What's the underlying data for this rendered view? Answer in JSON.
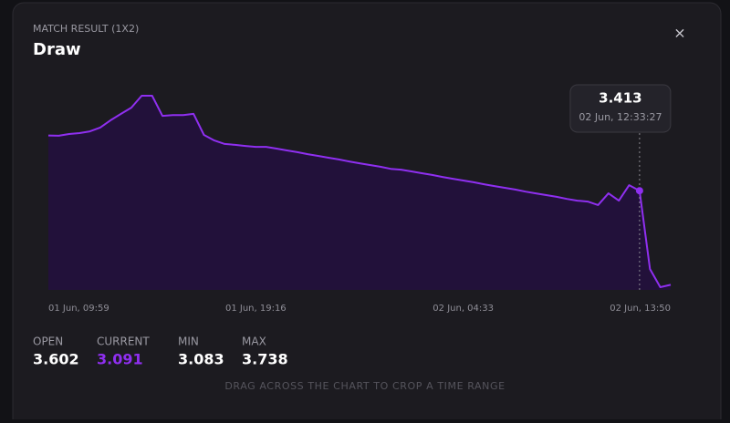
{
  "header": {
    "subtitle": "MATCH RESULT (1X2)",
    "title": "Draw",
    "close": "×"
  },
  "chart_data": {
    "type": "line",
    "color": "#8f2ff0",
    "fill": "#22113a",
    "categories": [
      "01 Jun, 09:59",
      null,
      null,
      null,
      null,
      null,
      null,
      null,
      null,
      null,
      null,
      null,
      null,
      null,
      null,
      null,
      null,
      null,
      null,
      null,
      "01 Jun, 19:16",
      null,
      null,
      null,
      null,
      null,
      null,
      null,
      null,
      null,
      null,
      null,
      null,
      null,
      null,
      null,
      null,
      null,
      null,
      null,
      "02 Jun, 04:33",
      null,
      null,
      null,
      null,
      null,
      null,
      null,
      null,
      null,
      null,
      null,
      null,
      null,
      null,
      null,
      null,
      null,
      null,
      null,
      "02 Jun, 13:50"
    ],
    "values": [
      3.602,
      3.601,
      3.607,
      3.61,
      3.616,
      3.629,
      3.654,
      3.676,
      3.697,
      3.738,
      3.738,
      3.669,
      3.672,
      3.672,
      3.676,
      3.604,
      3.585,
      3.573,
      3.57,
      3.566,
      3.563,
      3.563,
      3.557,
      3.551,
      3.545,
      3.538,
      3.532,
      3.526,
      3.52,
      3.513,
      3.507,
      3.501,
      3.495,
      3.488,
      3.485,
      3.479,
      3.473,
      3.467,
      3.46,
      3.454,
      3.448,
      3.442,
      3.435,
      3.429,
      3.423,
      3.417,
      3.41,
      3.404,
      3.398,
      3.392,
      3.385,
      3.379,
      3.376,
      3.364,
      3.404,
      3.379,
      3.432,
      3.413,
      3.145,
      3.083,
      3.091
    ],
    "tooltip": {
      "value": 3.413,
      "time": "02 Jun, 12:33:27"
    }
  },
  "stats": [
    {
      "label": "OPEN",
      "value": 3.602
    },
    {
      "label": "CURRENT",
      "value": 3.091
    },
    {
      "label": "MIN",
      "value": 3.083
    },
    {
      "label": "MAX",
      "value": 3.738
    }
  ],
  "hint": "DRAG ACROSS THE CHART TO CROP A TIME RANGE"
}
